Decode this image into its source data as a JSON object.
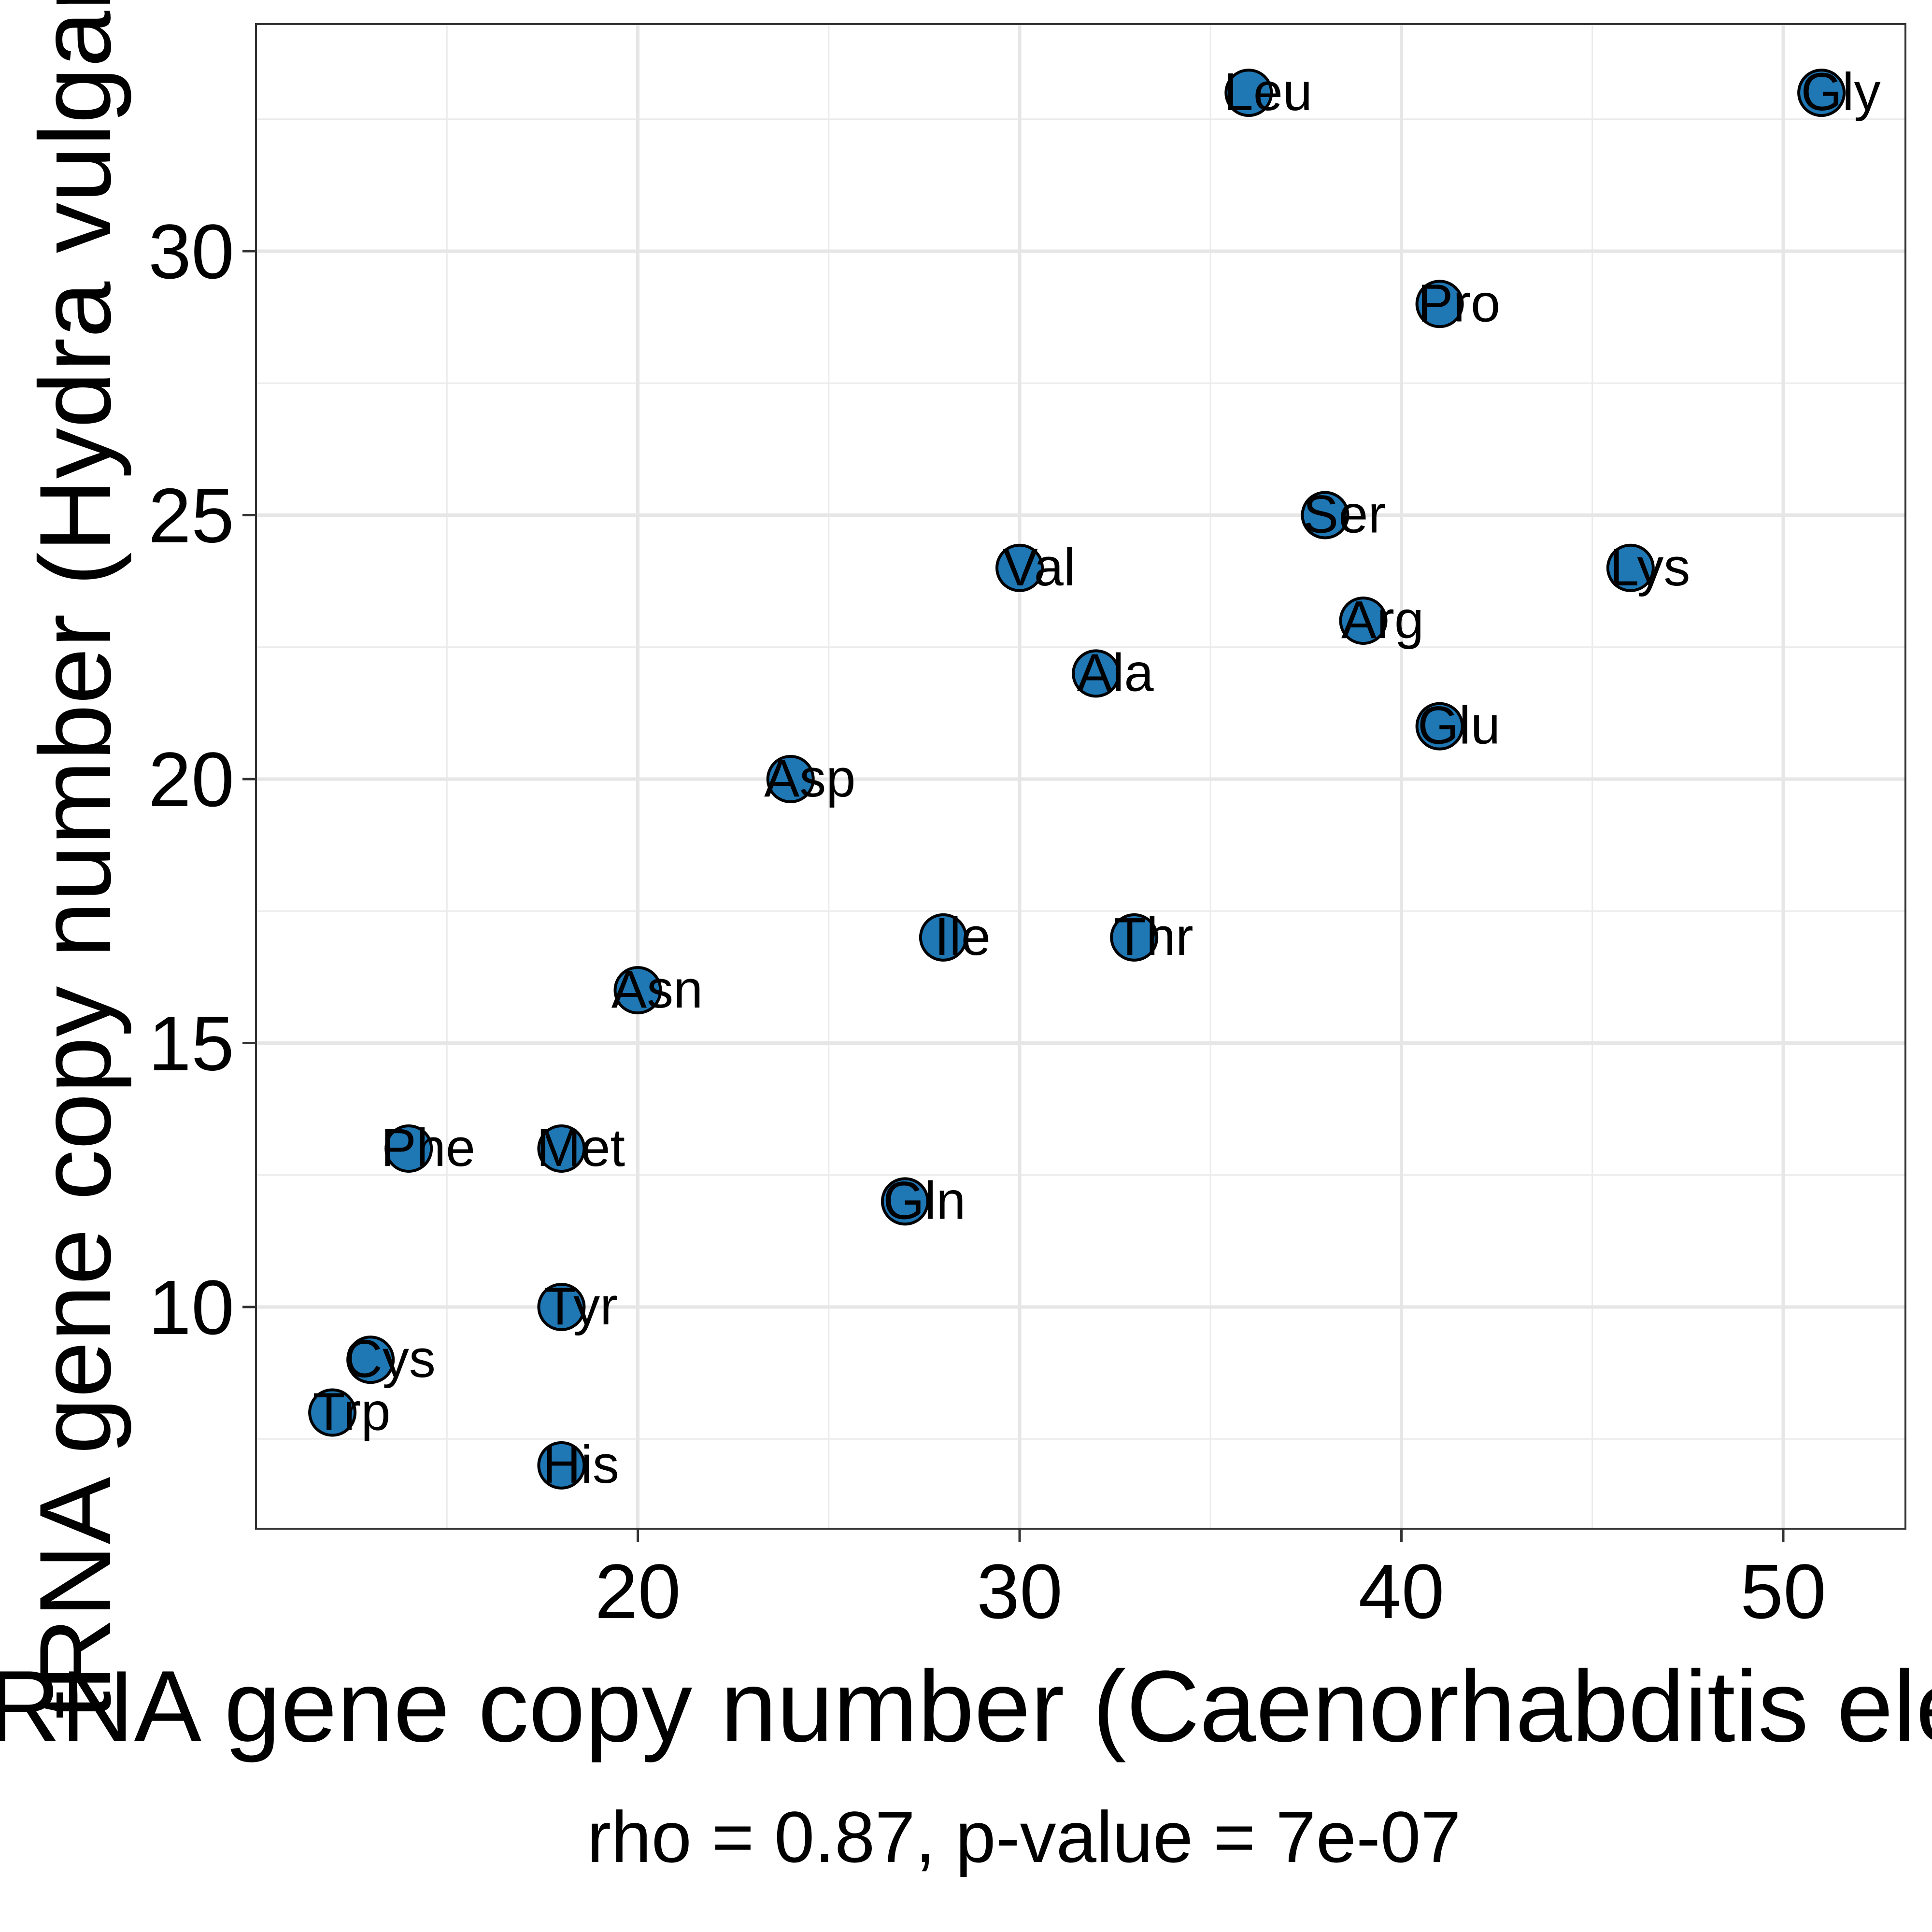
{
  "chart_data": {
    "type": "scatter",
    "xlabel": "tRNA gene copy number (Caenorhabditis elegans)",
    "ylabel": "tRNA gene copy number (Hydra vulgaris)",
    "caption": "rho = 0.87, p-value = 7e-07",
    "xlim": [
      10,
      53.2
    ],
    "ylim": [
      5.8,
      34.3
    ],
    "x_ticks": [
      20,
      30,
      40,
      50
    ],
    "y_ticks": [
      10,
      15,
      20,
      25,
      30
    ],
    "x_tick_labels": [
      "20",
      "30",
      "40",
      "50"
    ],
    "y_tick_labels": [
      "10",
      "15",
      "20",
      "25",
      "30"
    ],
    "grid": true,
    "marker_color": "#1f77b4",
    "marker_edge_color": "#000000",
    "points": [
      {
        "label": "Leu",
        "x": 36,
        "y": 33
      },
      {
        "label": "Gly",
        "x": 51,
        "y": 33
      },
      {
        "label": "Pro",
        "x": 41,
        "y": 29
      },
      {
        "label": "Ser",
        "x": 38,
        "y": 25
      },
      {
        "label": "Val",
        "x": 30,
        "y": 24
      },
      {
        "label": "Lys",
        "x": 46,
        "y": 24
      },
      {
        "label": "Arg",
        "x": 39,
        "y": 23
      },
      {
        "label": "Ala",
        "x": 32,
        "y": 22
      },
      {
        "label": "Glu",
        "x": 41,
        "y": 21
      },
      {
        "label": "Asp",
        "x": 24,
        "y": 20
      },
      {
        "label": "Ile",
        "x": 28,
        "y": 17
      },
      {
        "label": "Thr",
        "x": 33,
        "y": 17
      },
      {
        "label": "Asn",
        "x": 20,
        "y": 16
      },
      {
        "label": "Phe",
        "x": 14,
        "y": 13
      },
      {
        "label": "Met",
        "x": 18,
        "y": 13
      },
      {
        "label": "Gln",
        "x": 27,
        "y": 12
      },
      {
        "label": "Tyr",
        "x": 18,
        "y": 10
      },
      {
        "label": "Cys",
        "x": 13,
        "y": 9
      },
      {
        "label": "Trp",
        "x": 12,
        "y": 8
      },
      {
        "label": "His",
        "x": 18,
        "y": 7
      }
    ]
  }
}
